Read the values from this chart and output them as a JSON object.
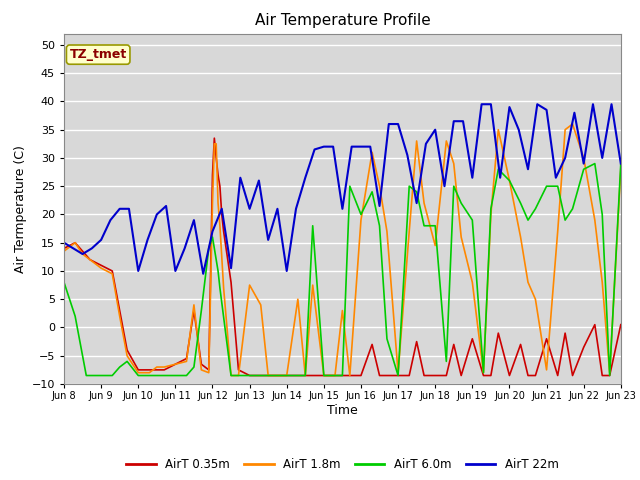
{
  "title": "Air Temperature Profile",
  "xlabel": "Time",
  "ylabel": "Air Termperature (C)",
  "ylim": [
    -10,
    52
  ],
  "yticks": [
    -10,
    -5,
    0,
    5,
    10,
    15,
    20,
    25,
    30,
    35,
    40,
    45,
    50
  ],
  "fig_bg": "#f0f0f0",
  "plot_bg": "#d8d8d8",
  "grid_color": "#ffffff",
  "annotation_text": "TZ_tmet",
  "annotation_color": "#8b0000",
  "annotation_bg": "#ffffcc",
  "annotation_border": "#999900",
  "legend_labels": [
    "AirT 0.35m",
    "AirT 1.8m",
    "AirT 6.0m",
    "AirT 22m"
  ],
  "legend_colors": [
    "#cc0000",
    "#ff8800",
    "#00cc00",
    "#0000cc"
  ],
  "x_tick_labels": [
    "Jun 8",
    "Jun 9",
    "Jun 10",
    "Jun 11",
    "Jun 12",
    "Jun 13",
    "Jun 14",
    "Jun 15",
    "Jun 16",
    "Jun 17",
    "Jun 18",
    "Jun 19",
    "Jun 20",
    "Jun 21",
    "Jun 22",
    "Jun 23"
  ],
  "x_tick_positions": [
    0,
    1,
    2,
    3,
    4,
    5,
    6,
    7,
    8,
    9,
    10,
    11,
    12,
    13,
    14,
    15
  ],
  "series": {
    "AirT_035m": {
      "color": "#cc0000",
      "lw": 1.2,
      "x": [
        0.0,
        0.3,
        0.5,
        0.7,
        1.0,
        1.3,
        1.5,
        1.7,
        2.0,
        2.3,
        2.5,
        2.7,
        3.0,
        3.3,
        3.5,
        3.7,
        3.9,
        4.0,
        4.05,
        4.1,
        4.15,
        4.2,
        4.25,
        4.3,
        4.5,
        4.7,
        5.0,
        5.3,
        5.5,
        5.7,
        6.0,
        6.3,
        6.5,
        6.7,
        7.0,
        7.3,
        7.5,
        7.7,
        8.0,
        8.3,
        8.5,
        8.7,
        9.0,
        9.3,
        9.5,
        9.7,
        10.0,
        10.3,
        10.5,
        10.7,
        11.0,
        11.3,
        11.5,
        11.7,
        12.0,
        12.3,
        12.5,
        12.7,
        13.0,
        13.3,
        13.5,
        13.7,
        14.0,
        14.3,
        14.5,
        14.7,
        15.0
      ],
      "y": [
        14.0,
        15.0,
        13.5,
        12.0,
        11.0,
        10.0,
        3.0,
        -4.0,
        -7.5,
        -7.5,
        -7.5,
        -7.5,
        -6.5,
        -5.5,
        3.0,
        -6.5,
        -7.5,
        27.0,
        33.5,
        30.0,
        27.0,
        25.0,
        20.0,
        17.0,
        8.0,
        -7.5,
        -8.5,
        -8.5,
        -8.5,
        -8.5,
        -8.5,
        -8.5,
        -8.5,
        -8.5,
        -8.5,
        -8.5,
        -8.5,
        -8.5,
        -8.5,
        -3.0,
        -8.5,
        -8.5,
        -8.5,
        -8.5,
        -2.5,
        -8.5,
        -8.5,
        -8.5,
        -3.0,
        -8.5,
        -2.0,
        -8.5,
        -8.5,
        -1.0,
        -8.5,
        -3.0,
        -8.5,
        -8.5,
        -2.0,
        -8.5,
        -1.0,
        -8.5,
        -3.5,
        0.5,
        -8.5,
        -8.5,
        0.5
      ]
    },
    "AirT_18m": {
      "color": "#ff8800",
      "lw": 1.2,
      "x": [
        0.0,
        0.3,
        0.5,
        0.7,
        1.0,
        1.3,
        1.5,
        1.7,
        2.0,
        2.3,
        2.5,
        2.7,
        3.0,
        3.3,
        3.5,
        3.7,
        3.9,
        4.0,
        4.05,
        4.1,
        4.15,
        4.2,
        4.3,
        4.5,
        4.7,
        5.0,
        5.3,
        5.5,
        5.7,
        6.0,
        6.3,
        6.5,
        6.7,
        7.0,
        7.3,
        7.5,
        7.7,
        8.0,
        8.3,
        8.5,
        8.7,
        9.0,
        9.3,
        9.5,
        9.7,
        10.0,
        10.3,
        10.5,
        10.7,
        11.0,
        11.3,
        11.5,
        11.7,
        12.0,
        12.3,
        12.5,
        12.7,
        13.0,
        13.3,
        13.5,
        13.7,
        14.0,
        14.3,
        14.5,
        14.7,
        15.0
      ],
      "y": [
        13.5,
        15.0,
        13.0,
        12.0,
        10.5,
        9.5,
        2.0,
        -5.0,
        -8.0,
        -8.0,
        -7.0,
        -7.0,
        -6.5,
        -6.0,
        4.0,
        -7.5,
        -8.0,
        22.0,
        32.5,
        32.5,
        22.0,
        18.0,
        7.0,
        -8.5,
        -8.5,
        7.5,
        4.0,
        -8.5,
        -8.5,
        -8.5,
        5.0,
        -8.5,
        7.5,
        -8.5,
        -8.5,
        3.0,
        -8.5,
        19.0,
        31.0,
        25.0,
        17.0,
        -8.0,
        17.0,
        33.0,
        22.0,
        14.5,
        33.0,
        29.0,
        16.0,
        8.0,
        -8.0,
        20.0,
        35.0,
        26.0,
        16.0,
        8.0,
        5.0,
        -7.5,
        17.0,
        35.0,
        36.0,
        30.0,
        19.0,
        8.0,
        -8.0,
        28.0
      ]
    },
    "AirT_60m": {
      "color": "#00cc00",
      "lw": 1.2,
      "x": [
        0.0,
        0.3,
        0.6,
        1.0,
        1.3,
        1.5,
        1.7,
        2.0,
        2.3,
        2.5,
        2.7,
        3.0,
        3.3,
        3.5,
        3.7,
        3.9,
        4.0,
        4.05,
        4.1,
        4.15,
        4.2,
        4.5,
        4.7,
        5.0,
        5.3,
        5.5,
        5.7,
        6.0,
        6.3,
        6.5,
        6.7,
        7.0,
        7.3,
        7.5,
        7.7,
        8.0,
        8.3,
        8.5,
        8.7,
        9.0,
        9.3,
        9.5,
        9.7,
        10.0,
        10.3,
        10.5,
        10.7,
        11.0,
        11.3,
        11.5,
        11.7,
        12.0,
        12.3,
        12.5,
        12.7,
        13.0,
        13.3,
        13.5,
        13.7,
        14.0,
        14.3,
        14.5,
        14.7,
        15.0
      ],
      "y": [
        8.0,
        2.0,
        -8.5,
        -8.5,
        -8.5,
        -7.0,
        -6.0,
        -8.5,
        -8.5,
        -8.5,
        -8.5,
        -8.5,
        -8.5,
        -7.0,
        3.0,
        14.0,
        16.0,
        14.0,
        12.0,
        10.0,
        7.0,
        -8.5,
        -8.5,
        -8.5,
        -8.5,
        -8.5,
        -8.5,
        -8.5,
        -8.5,
        -8.5,
        18.0,
        -8.5,
        -8.5,
        -8.5,
        25.0,
        20.0,
        24.0,
        18.0,
        -2.0,
        -8.5,
        25.0,
        24.0,
        18.0,
        18.0,
        -6.0,
        25.0,
        22.0,
        19.0,
        -8.0,
        21.0,
        28.0,
        26.0,
        22.0,
        19.0,
        21.0,
        25.0,
        25.0,
        19.0,
        21.0,
        28.0,
        29.0,
        20.0,
        -8.5,
        29.0
      ]
    },
    "AirT_22m": {
      "color": "#0000cc",
      "lw": 1.5,
      "x": [
        0.0,
        0.25,
        0.5,
        0.75,
        1.0,
        1.25,
        1.5,
        1.75,
        2.0,
        2.25,
        2.5,
        2.75,
        3.0,
        3.25,
        3.5,
        3.75,
        4.0,
        4.25,
        4.5,
        4.75,
        5.0,
        5.25,
        5.5,
        5.75,
        6.0,
        6.25,
        6.5,
        6.75,
        7.0,
        7.25,
        7.5,
        7.75,
        8.0,
        8.25,
        8.5,
        8.75,
        9.0,
        9.25,
        9.5,
        9.75,
        10.0,
        10.25,
        10.5,
        10.75,
        11.0,
        11.25,
        11.5,
        11.75,
        12.0,
        12.25,
        12.5,
        12.75,
        13.0,
        13.25,
        13.5,
        13.75,
        14.0,
        14.25,
        14.5,
        14.75,
        15.0
      ],
      "y": [
        15.0,
        14.0,
        13.0,
        14.0,
        15.5,
        19.0,
        21.0,
        21.0,
        10.0,
        15.5,
        20.0,
        21.5,
        10.0,
        14.0,
        19.0,
        9.5,
        17.0,
        21.0,
        10.5,
        26.5,
        21.0,
        26.0,
        15.5,
        21.0,
        10.0,
        21.0,
        26.5,
        31.5,
        32.0,
        32.0,
        21.0,
        32.0,
        32.0,
        32.0,
        21.5,
        36.0,
        36.0,
        30.5,
        22.0,
        32.5,
        35.0,
        25.0,
        36.5,
        36.5,
        26.5,
        39.5,
        39.5,
        26.5,
        39.0,
        35.0,
        28.0,
        39.5,
        38.5,
        26.5,
        30.0,
        38.0,
        29.0,
        39.5,
        30.0,
        39.5,
        29.0
      ]
    }
  }
}
